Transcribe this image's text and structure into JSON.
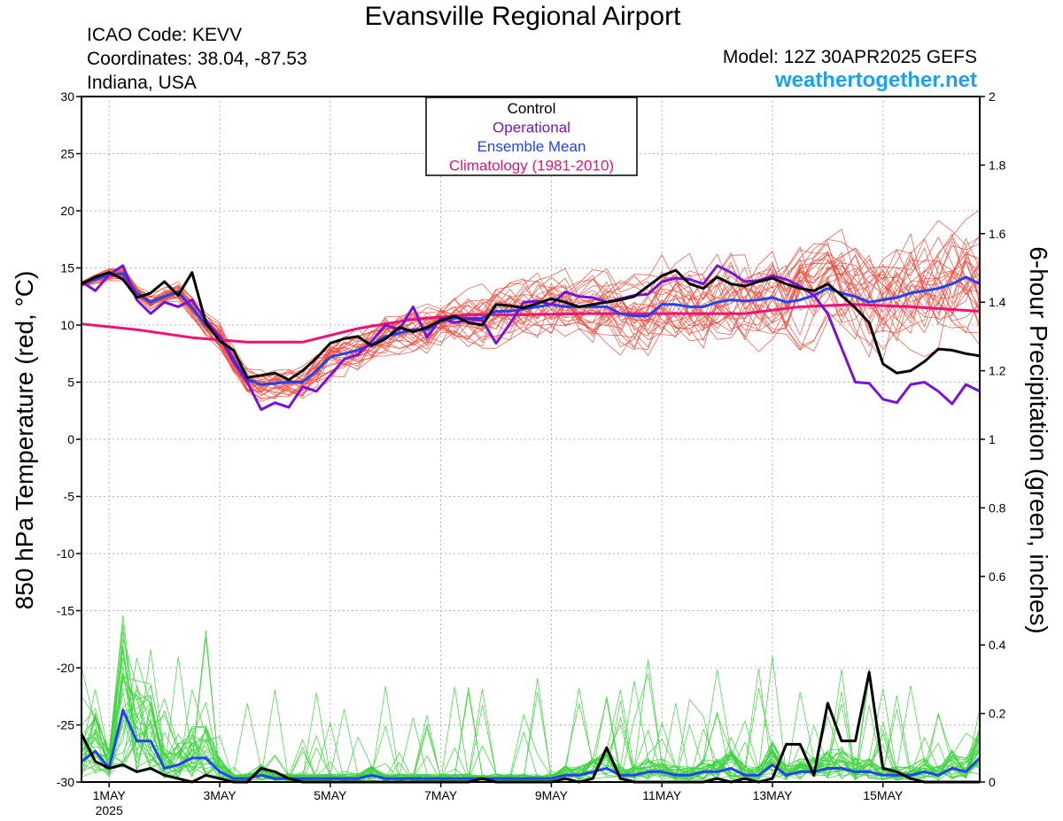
{
  "header": {
    "title": "Evansville Regional Airport",
    "icao": "ICAO Code: KEVV",
    "coordinates": "Coordinates: 38.04, -87.53",
    "region": "Indiana, USA",
    "model": "Model: 12Z 30APR2025 GEFS",
    "brand": "weathertogether.net"
  },
  "colors": {
    "control": "#000000",
    "operational": "#7a12d6",
    "ensemble_mean": "#2342f0",
    "climatology": "#ee1177",
    "members_temp": "#f04a3a",
    "members_precip": "#3cd43c"
  },
  "chart_data": {
    "type": "line",
    "title": "Evansville Regional Airport",
    "ylabel": "850 hPa Temperature (red, °C)",
    "y2label": "6-hour Precipitation (green, inches)",
    "ylim": [
      -30,
      30
    ],
    "y2lim": [
      0,
      2
    ],
    "grid": true,
    "legend_position": "top-center",
    "yticks": [
      30,
      25,
      20,
      15,
      10,
      5,
      0,
      -5,
      -10,
      -15,
      -20,
      -25,
      -30
    ],
    "y2ticks": [
      "2",
      "1.8",
      "1.6",
      "1.4",
      "1.2",
      "1",
      "0.8",
      "0.6",
      "0.4",
      "0.2",
      "0"
    ],
    "xlim": [
      0,
      65
    ],
    "xticks": [
      {
        "x": 2,
        "label": "1MAY",
        "sub": "2025"
      },
      {
        "x": 10,
        "label": "3MAY"
      },
      {
        "x": 18,
        "label": "5MAY"
      },
      {
        "x": 26,
        "label": "7MAY"
      },
      {
        "x": 34,
        "label": "9MAY"
      },
      {
        "x": 42,
        "label": "11MAY"
      },
      {
        "x": 50,
        "label": "13MAY"
      },
      {
        "x": 58,
        "label": "15MAY"
      }
    ],
    "legend": [
      "Control",
      "Operational",
      "Ensemble Mean",
      "Climatology (1981-2010)"
    ],
    "series": [
      {
        "name": "Control",
        "axis": "left",
        "x": [
          0,
          1,
          2,
          3,
          4,
          5,
          6,
          7,
          8,
          9,
          10,
          11,
          12,
          13,
          14,
          15,
          16,
          17,
          18,
          19,
          20,
          21,
          22,
          23,
          24,
          25,
          26,
          27,
          28,
          29,
          30,
          31,
          32,
          33,
          34,
          35,
          36,
          37,
          38,
          39,
          40,
          41,
          42,
          43,
          44,
          45,
          46,
          47,
          48,
          49,
          50,
          51,
          52,
          53,
          54,
          55,
          56,
          57,
          58,
          59,
          60,
          61,
          62,
          63,
          64,
          65
        ],
        "y": [
          13.6,
          14.2,
          14.6,
          14.0,
          12.4,
          12.8,
          13.8,
          12.6,
          14.6,
          10.2,
          8.6,
          7.8,
          5.4,
          5.6,
          5.8,
          5.2,
          6.0,
          7.1,
          8.4,
          8.8,
          9.0,
          8.2,
          8.8,
          9.8,
          9.4,
          9.8,
          10.4,
          10.8,
          10.2,
          10.0,
          11.8,
          11.7,
          11.5,
          11.9,
          12.3,
          12.0,
          11.6,
          11.8,
          12.0,
          12.2,
          12.5,
          13.4,
          14.3,
          14.8,
          13.6,
          13.2,
          14.2,
          13.6,
          13.4,
          13.8,
          14.1,
          13.6,
          13.2,
          13.0,
          13.6,
          12.6,
          11.5,
          10.2,
          6.6,
          5.8,
          6.0,
          6.8,
          7.9,
          7.8,
          7.5,
          7.3
        ]
      },
      {
        "name": "Operational",
        "axis": "left",
        "x": [
          0,
          1,
          2,
          3,
          4,
          5,
          6,
          7,
          8,
          9,
          10,
          11,
          12,
          13,
          14,
          15,
          16,
          17,
          18,
          19,
          20,
          21,
          22,
          23,
          24,
          25,
          26,
          27,
          28,
          29,
          30,
          31,
          32,
          33,
          34,
          35,
          36,
          37,
          38,
          39,
          40,
          41,
          42,
          43,
          44,
          45,
          46,
          47,
          48,
          49,
          50,
          51,
          52,
          53,
          54,
          55,
          56,
          57,
          58,
          59,
          60,
          61,
          62,
          63,
          64,
          65
        ],
        "y": [
          13.8,
          13.0,
          14.4,
          15.2,
          12.2,
          11.0,
          12.0,
          11.6,
          12.2,
          10.4,
          9.0,
          6.8,
          5.0,
          2.6,
          3.2,
          2.8,
          4.6,
          4.2,
          5.6,
          7.0,
          7.4,
          8.6,
          10.0,
          9.6,
          11.6,
          8.9,
          10.6,
          10.2,
          10.5,
          10.4,
          8.4,
          10.1,
          12.0,
          12.1,
          11.8,
          12.9,
          12.5,
          12.4,
          12.0,
          12.3,
          12.6,
          12.7,
          13.8,
          14.1,
          14.0,
          13.6,
          15.2,
          14.6,
          13.8,
          13.9,
          14.3,
          14.0,
          13.4,
          12.6,
          11.0,
          8.0,
          5.0,
          4.9,
          3.5,
          3.2,
          4.8,
          5.0,
          4.2,
          3.1,
          4.8,
          4.2
        ]
      },
      {
        "name": "Ensemble Mean",
        "axis": "left",
        "x": [
          0,
          1,
          2,
          3,
          4,
          5,
          6,
          7,
          8,
          9,
          10,
          11,
          12,
          13,
          14,
          15,
          16,
          17,
          18,
          19,
          20,
          21,
          22,
          23,
          24,
          25,
          26,
          27,
          28,
          29,
          30,
          31,
          32,
          33,
          34,
          35,
          36,
          37,
          38,
          39,
          40,
          41,
          42,
          43,
          44,
          45,
          46,
          47,
          48,
          49,
          50,
          51,
          52,
          53,
          54,
          55,
          56,
          57,
          58,
          59,
          60,
          61,
          62,
          63,
          64,
          65
        ],
        "y": [
          13.6,
          14.0,
          14.4,
          14.5,
          12.8,
          12.0,
          12.5,
          12.9,
          11.5,
          10.0,
          9.0,
          7.0,
          5.2,
          4.8,
          4.9,
          5.0,
          5.0,
          6.0,
          7.2,
          7.5,
          7.8,
          8.3,
          9.0,
          9.3,
          9.6,
          9.6,
          10.3,
          10.6,
          10.6,
          10.6,
          11.2,
          11.2,
          11.4,
          11.6,
          11.8,
          11.6,
          11.6,
          11.6,
          11.6,
          11.0,
          10.8,
          10.8,
          11.8,
          11.8,
          11.6,
          11.6,
          12.0,
          12.2,
          12.1,
          12.2,
          12.4,
          12.0,
          12.2,
          12.6,
          13.2,
          12.8,
          12.5,
          12.0,
          12.2,
          12.4,
          12.8,
          13.0,
          13.2,
          13.6,
          14.2,
          13.6
        ]
      },
      {
        "name": "Climatology (1981-2010)",
        "axis": "left",
        "x": [
          0,
          4,
          8,
          12,
          16,
          20,
          24,
          28,
          32,
          36,
          40,
          44,
          48,
          52,
          56,
          60,
          65
        ],
        "y": [
          10.1,
          9.6,
          8.9,
          8.5,
          8.5,
          9.7,
          10.5,
          10.9,
          10.9,
          11.0,
          11.0,
          11.0,
          11.0,
          11.6,
          11.8,
          11.6,
          11.2
        ]
      },
      {
        "name": "Control",
        "axis": "right",
        "x": [
          0,
          1,
          2,
          3,
          4,
          5,
          6,
          7,
          8,
          9,
          10,
          11,
          12,
          13,
          14,
          15,
          16,
          17,
          18,
          19,
          20,
          21,
          22,
          23,
          24,
          25,
          26,
          27,
          28,
          29,
          30,
          31,
          32,
          33,
          34,
          35,
          36,
          37,
          38,
          39,
          40,
          41,
          42,
          43,
          44,
          45,
          46,
          47,
          48,
          49,
          50,
          51,
          52,
          53,
          54,
          55,
          56,
          57,
          58,
          59,
          60,
          61,
          62,
          63,
          64,
          65
        ],
        "y": [
          0.14,
          0.06,
          0.04,
          0.05,
          0.03,
          0.04,
          0.02,
          0.01,
          0,
          0.02,
          0.01,
          0,
          0,
          0.04,
          0.03,
          0.01,
          0,
          0,
          0,
          0,
          0,
          0,
          0,
          0,
          0,
          0,
          0,
          0,
          0,
          0.01,
          0,
          0,
          0,
          0,
          0,
          0.01,
          0,
          0.01,
          0.1,
          0.01,
          0,
          0,
          0,
          0,
          0,
          0,
          0.01,
          0,
          0.01,
          0,
          0.01,
          0.11,
          0.11,
          0.02,
          0.23,
          0.12,
          0.12,
          0.32,
          0.04,
          0.03,
          0.01,
          0,
          0,
          0,
          0,
          0
        ]
      },
      {
        "name": "Ensemble Mean",
        "axis": "right",
        "x": [
          0,
          1,
          2,
          3,
          4,
          5,
          6,
          7,
          8,
          9,
          10,
          11,
          12,
          13,
          14,
          15,
          16,
          17,
          18,
          19,
          20,
          21,
          22,
          23,
          24,
          25,
          26,
          27,
          28,
          29,
          30,
          31,
          32,
          33,
          34,
          35,
          36,
          37,
          38,
          39,
          40,
          41,
          42,
          43,
          44,
          45,
          46,
          47,
          48,
          49,
          50,
          51,
          52,
          53,
          54,
          55,
          56,
          57,
          58,
          59,
          60,
          61,
          62,
          63,
          64,
          65
        ],
        "y": [
          0.06,
          0.09,
          0.04,
          0.21,
          0.12,
          0.12,
          0.04,
          0.05,
          0.07,
          0.07,
          0.03,
          0.01,
          0.01,
          0.02,
          0.01,
          0.01,
          0.01,
          0.01,
          0.01,
          0.01,
          0.01,
          0.02,
          0.01,
          0.01,
          0.01,
          0.01,
          0.01,
          0.01,
          0.01,
          0.01,
          0.01,
          0.01,
          0.01,
          0.01,
          0.01,
          0.02,
          0.02,
          0.03,
          0.04,
          0.02,
          0.02,
          0.03,
          0.03,
          0.02,
          0.02,
          0.03,
          0.03,
          0.04,
          0.02,
          0.02,
          0.05,
          0.02,
          0.03,
          0.03,
          0.04,
          0.04,
          0.03,
          0.03,
          0.02,
          0.02,
          0.02,
          0.03,
          0.02,
          0.04,
          0.03,
          0.07
        ]
      }
    ]
  }
}
